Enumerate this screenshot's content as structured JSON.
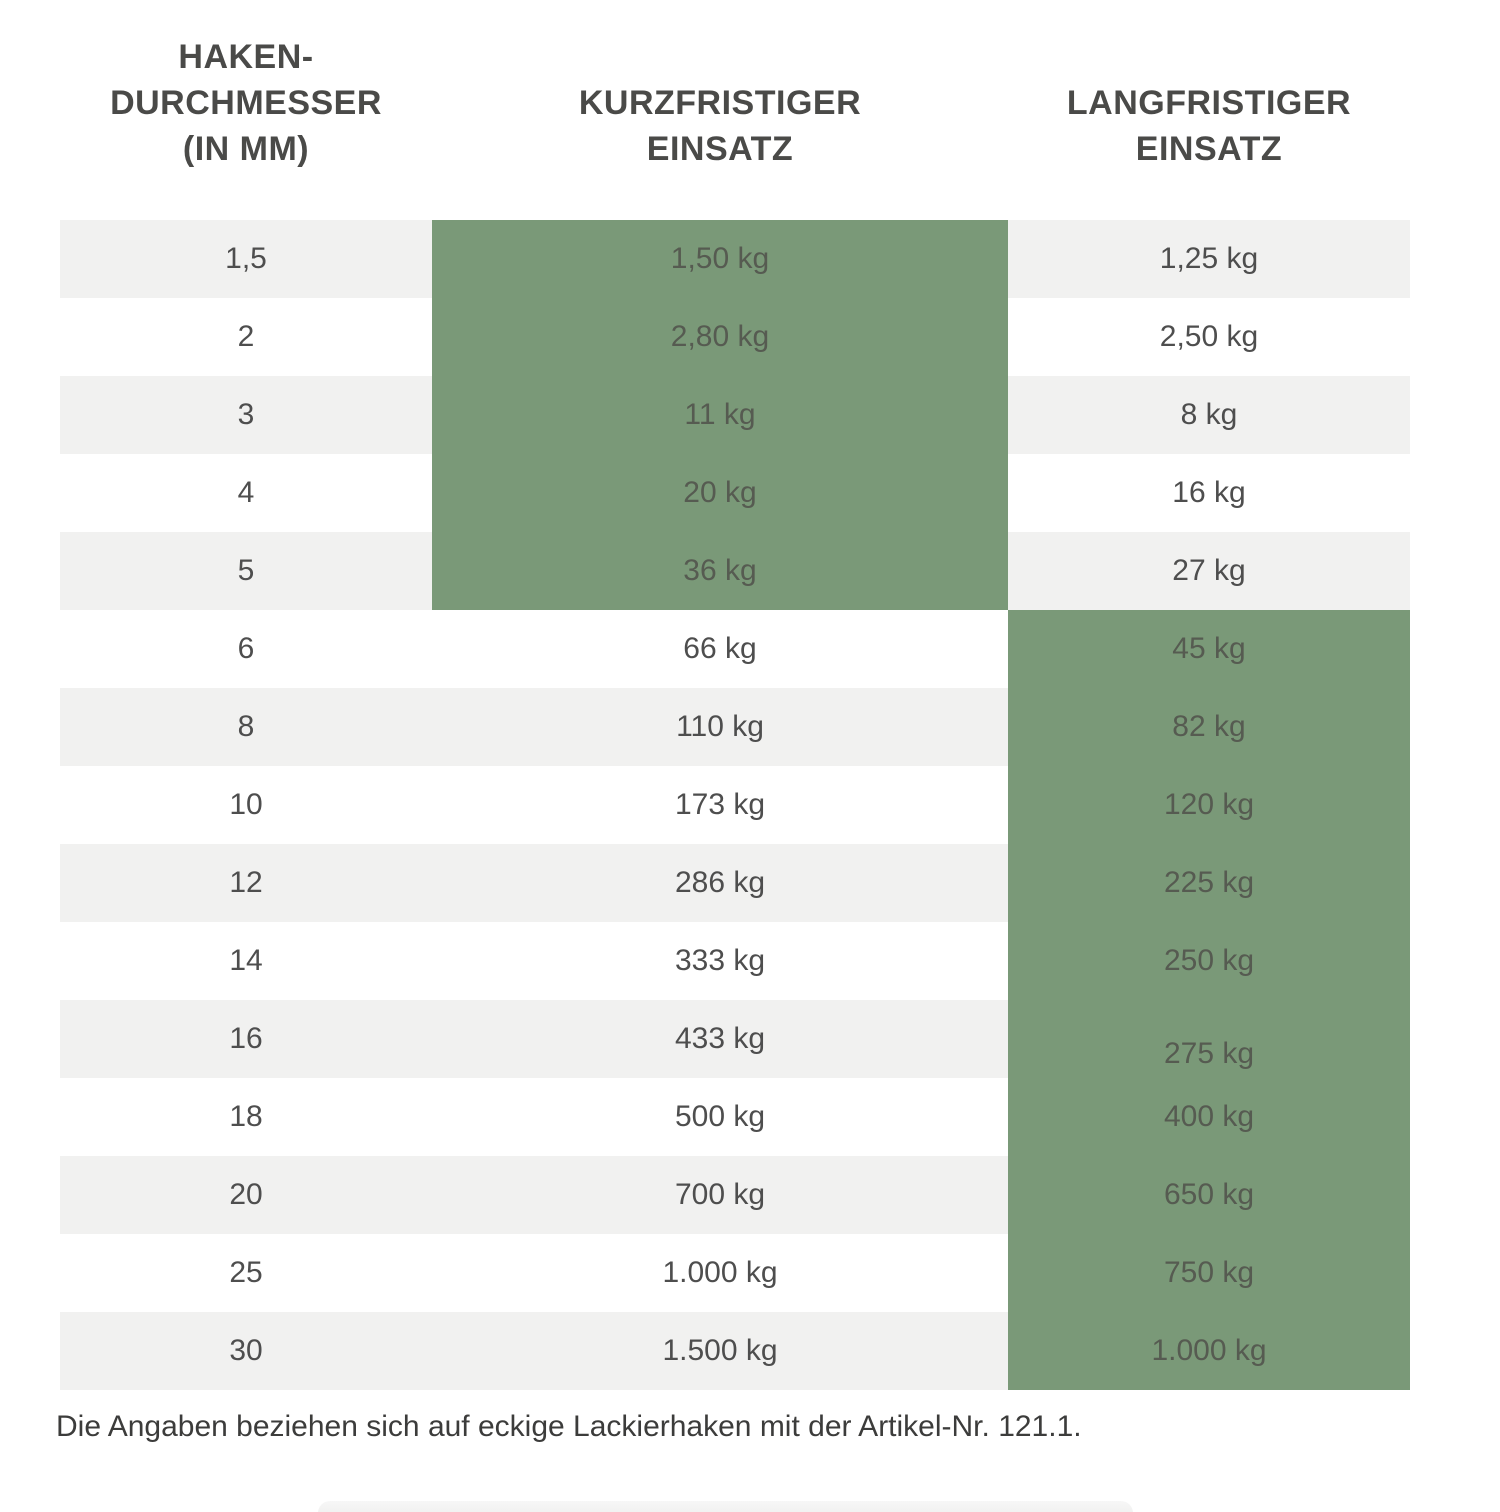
{
  "table": {
    "headers": {
      "col1": "HAKEN-\nDURCHMESSER\n(IN MM)",
      "col2": "KURZFRISTIGER\nEINSATZ",
      "col3": "LANGFRISTIGER\nEINSATZ"
    },
    "rows": [
      {
        "diameter": "1,5",
        "kurz": "1,50 kg",
        "lang": "1,25 kg",
        "highlight": "kurz"
      },
      {
        "diameter": "2",
        "kurz": "2,80 kg",
        "lang": "2,50 kg",
        "highlight": "kurz"
      },
      {
        "diameter": "3",
        "kurz": "11 kg",
        "lang": "8 kg",
        "highlight": "kurz"
      },
      {
        "diameter": "4",
        "kurz": "20 kg",
        "lang": "16 kg",
        "highlight": "kurz"
      },
      {
        "diameter": "5",
        "kurz": "36 kg",
        "lang": "27 kg",
        "highlight": "kurz"
      },
      {
        "diameter": "6",
        "kurz": "66 kg",
        "lang": "45 kg",
        "highlight": "lang"
      },
      {
        "diameter": "8",
        "kurz": "110 kg",
        "lang": "82 kg",
        "highlight": "lang"
      },
      {
        "diameter": "10",
        "kurz": "173 kg",
        "lang": "120 kg",
        "highlight": "lang"
      },
      {
        "diameter": "12",
        "kurz": "286 kg",
        "lang": "225 kg",
        "highlight": "lang"
      },
      {
        "diameter": "14",
        "kurz": "333 kg",
        "lang": "250 kg",
        "highlight": "lang"
      },
      {
        "diameter": "16",
        "kurz": "433 kg",
        "lang": "275 kg",
        "highlight": "lang"
      },
      {
        "diameter": "18",
        "kurz": "500 kg",
        "lang": "400 kg",
        "highlight": "lang"
      },
      {
        "diameter": "20",
        "kurz": "700 kg",
        "lang": "650 kg",
        "highlight": "lang"
      },
      {
        "diameter": "25",
        "kurz": "1.000 kg",
        "lang": "750 kg",
        "highlight": "lang"
      },
      {
        "diameter": "30",
        "kurz": "1.500 kg",
        "lang": "1.000 kg",
        "highlight": "lang"
      }
    ],
    "colors": {
      "highlight_green": "#7a9978",
      "stripe_gray": "#f1f1f0"
    }
  },
  "footnote": "Die Angaben beziehen sich auf eckige Lackierhaken mit der Artikel-Nr. 121.1."
}
